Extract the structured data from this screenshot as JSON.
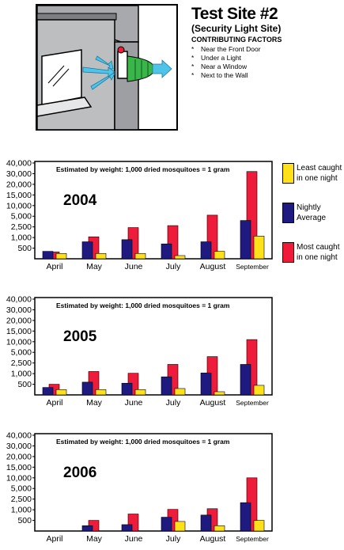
{
  "header": {
    "title": "Test Site #2",
    "subtitle": "(Security Light Site)",
    "factors_title": "CONTRIBUTING FACTORS",
    "factors": [
      "Near the Front Door",
      "Under a Light",
      "Near a Window",
      "Next to the Wall"
    ],
    "bullet": "*"
  },
  "legend": [
    {
      "label_line1": "Least caught",
      "label_line2": "in one night",
      "color": "#ffe11a"
    },
    {
      "label_line1": "Nightly",
      "label_line2": "Average",
      "color": "#1f1a80"
    },
    {
      "label_line1": "Most caught",
      "label_line2": "in one night",
      "color": "#ee1c3a"
    }
  ],
  "colors": {
    "least": "#ffe11a",
    "average": "#1f1a80",
    "most": "#ee1c3a",
    "plot_border": "#000000"
  },
  "chart_data": [
    {
      "type": "bar",
      "year": "2004",
      "note": "Estimated by weight:  1,000 dried mosquitoes = 1 gram",
      "categories": [
        "April",
        "May",
        "June",
        "July",
        "August",
        "September"
      ],
      "y_ticks": [
        "500",
        "1,000",
        "2,500",
        "5,000",
        "10,000",
        "15,000",
        "20,000",
        "30,000",
        "40,000"
      ],
      "series": [
        {
          "name": "Least caught in one night",
          "values": [
            250,
            250,
            250,
            150,
            350,
            1200
          ]
        },
        {
          "name": "Nightly Average",
          "values": [
            350,
            800,
            900,
            700,
            800,
            4000
          ]
        },
        {
          "name": "Most caught in one night",
          "values": [
            320,
            1100,
            2400,
            2800,
            5500,
            32000
          ]
        }
      ]
    },
    {
      "type": "bar",
      "year": "2005",
      "note": "Estimated by weight:  1,000 dried mosquitoes = 1 gram",
      "categories": [
        "April",
        "May",
        "June",
        "July",
        "August",
        "September"
      ],
      "y_ticks": [
        "500",
        "1,000",
        "2,500",
        "5,000",
        "10,000",
        "15,000",
        "20,000",
        "30,000",
        "40,000"
      ],
      "series": [
        {
          "name": "Least caught in one night",
          "values": [
            250,
            250,
            250,
            300,
            150,
            450
          ]
        },
        {
          "name": "Nightly Average",
          "values": [
            350,
            600,
            550,
            850,
            1100,
            2300
          ]
        },
        {
          "name": "Most caught in one night",
          "values": [
            500,
            1300,
            1050,
            2300,
            4000,
            11000
          ]
        }
      ]
    },
    {
      "type": "bar",
      "year": "2006",
      "note": "Estimated by weight:  1,000 dried mosquitoes = 1 gram",
      "categories": [
        "April",
        "May",
        "June",
        "July",
        "August",
        "September"
      ],
      "y_ticks": [
        "500",
        "1,000",
        "2,500",
        "5,000",
        "10,000",
        "15,000",
        "20,000",
        "30,000",
        "40,000"
      ],
      "series": [
        {
          "name": "Least caught in one night",
          "values": [
            0,
            0,
            0,
            450,
            250,
            500
          ]
        },
        {
          "name": "Nightly Average",
          "values": [
            0,
            250,
            300,
            650,
            750,
            2000
          ]
        },
        {
          "name": "Most caught in one night",
          "values": [
            0,
            500,
            800,
            1050,
            1150,
            10000
          ]
        }
      ]
    }
  ]
}
